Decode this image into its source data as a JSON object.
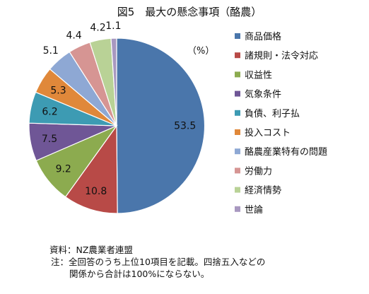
{
  "chart_data": {
    "type": "pie",
    "title": "図5　最大の懸念事項（酪農）",
    "unit_label": "（%）",
    "slices": [
      {
        "label": "商品価格",
        "value": 53.5,
        "display": "53.5",
        "color": "#4a76ab"
      },
      {
        "label": "諸規則・法令対応",
        "value": 10.8,
        "display": "10.8",
        "color": "#b84a47"
      },
      {
        "label": "収益性",
        "value": 9.2,
        "display": "9.2",
        "color": "#8cab4f"
      },
      {
        "label": "気象条件",
        "value": 7.5,
        "display": "7.5",
        "color": "#6f5696"
      },
      {
        "label": "負債、利子払",
        "value": 6.2,
        "display": "6.2",
        "color": "#3d9bb3"
      },
      {
        "label": "投入コスト",
        "value": 5.3,
        "display": "5.3",
        "color": "#e0883a"
      },
      {
        "label": "酪農産業特有の問題",
        "value": 5.1,
        "display": "5.1",
        "color": "#8ea8d4"
      },
      {
        "label": "労働力",
        "value": 4.4,
        "display": "4.4",
        "color": "#d69593"
      },
      {
        "label": "経済情勢",
        "value": 4.2,
        "display": "4.2",
        "color": "#b9d296"
      },
      {
        "label": "世論",
        "value": 1.1,
        "display": "1.1",
        "color": "#a898c0"
      }
    ],
    "legend_position": "right"
  },
  "notes": {
    "source": "資料：NZ農業者連盟",
    "note_line1": "注：全回答のうち上位10項目を記載。四捨五入などの",
    "note_line2": "関係から合計は100%にならない。"
  }
}
